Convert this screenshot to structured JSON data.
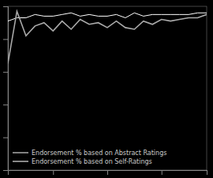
{
  "chart_data": {
    "type": "line",
    "x": [
      0,
      1,
      2,
      3,
      4,
      5,
      6,
      7,
      8,
      9,
      10,
      11,
      12,
      13,
      14,
      15,
      16,
      17,
      18,
      19,
      20,
      21,
      22
    ],
    "series": [
      {
        "name": "Endorsement % based on Abstract Ratings",
        "color": "#ffffff",
        "values": [
          91,
          93,
          93,
          95,
          94,
          94,
          95,
          96,
          94,
          95,
          94,
          94,
          95,
          93,
          96,
          94,
          95,
          95,
          95,
          95,
          95,
          96,
          96
        ]
      },
      {
        "name": "Endorsement % based on Self-Ratings",
        "color": "#aaaaaa",
        "values": [
          65,
          97,
          82,
          88,
          90,
          85,
          91,
          86,
          92,
          89,
          90,
          87,
          91,
          87,
          86,
          91,
          89,
          92,
          91,
          92,
          93,
          93,
          95
        ]
      }
    ],
    "xlim": [
      0,
      22
    ],
    "ylim": [
      0,
      100
    ],
    "xticks": [
      5,
      11,
      17,
      22
    ],
    "yticks": [
      20,
      40,
      60,
      80
    ],
    "tick_labels": false,
    "grid": false,
    "legend": "lower left"
  }
}
